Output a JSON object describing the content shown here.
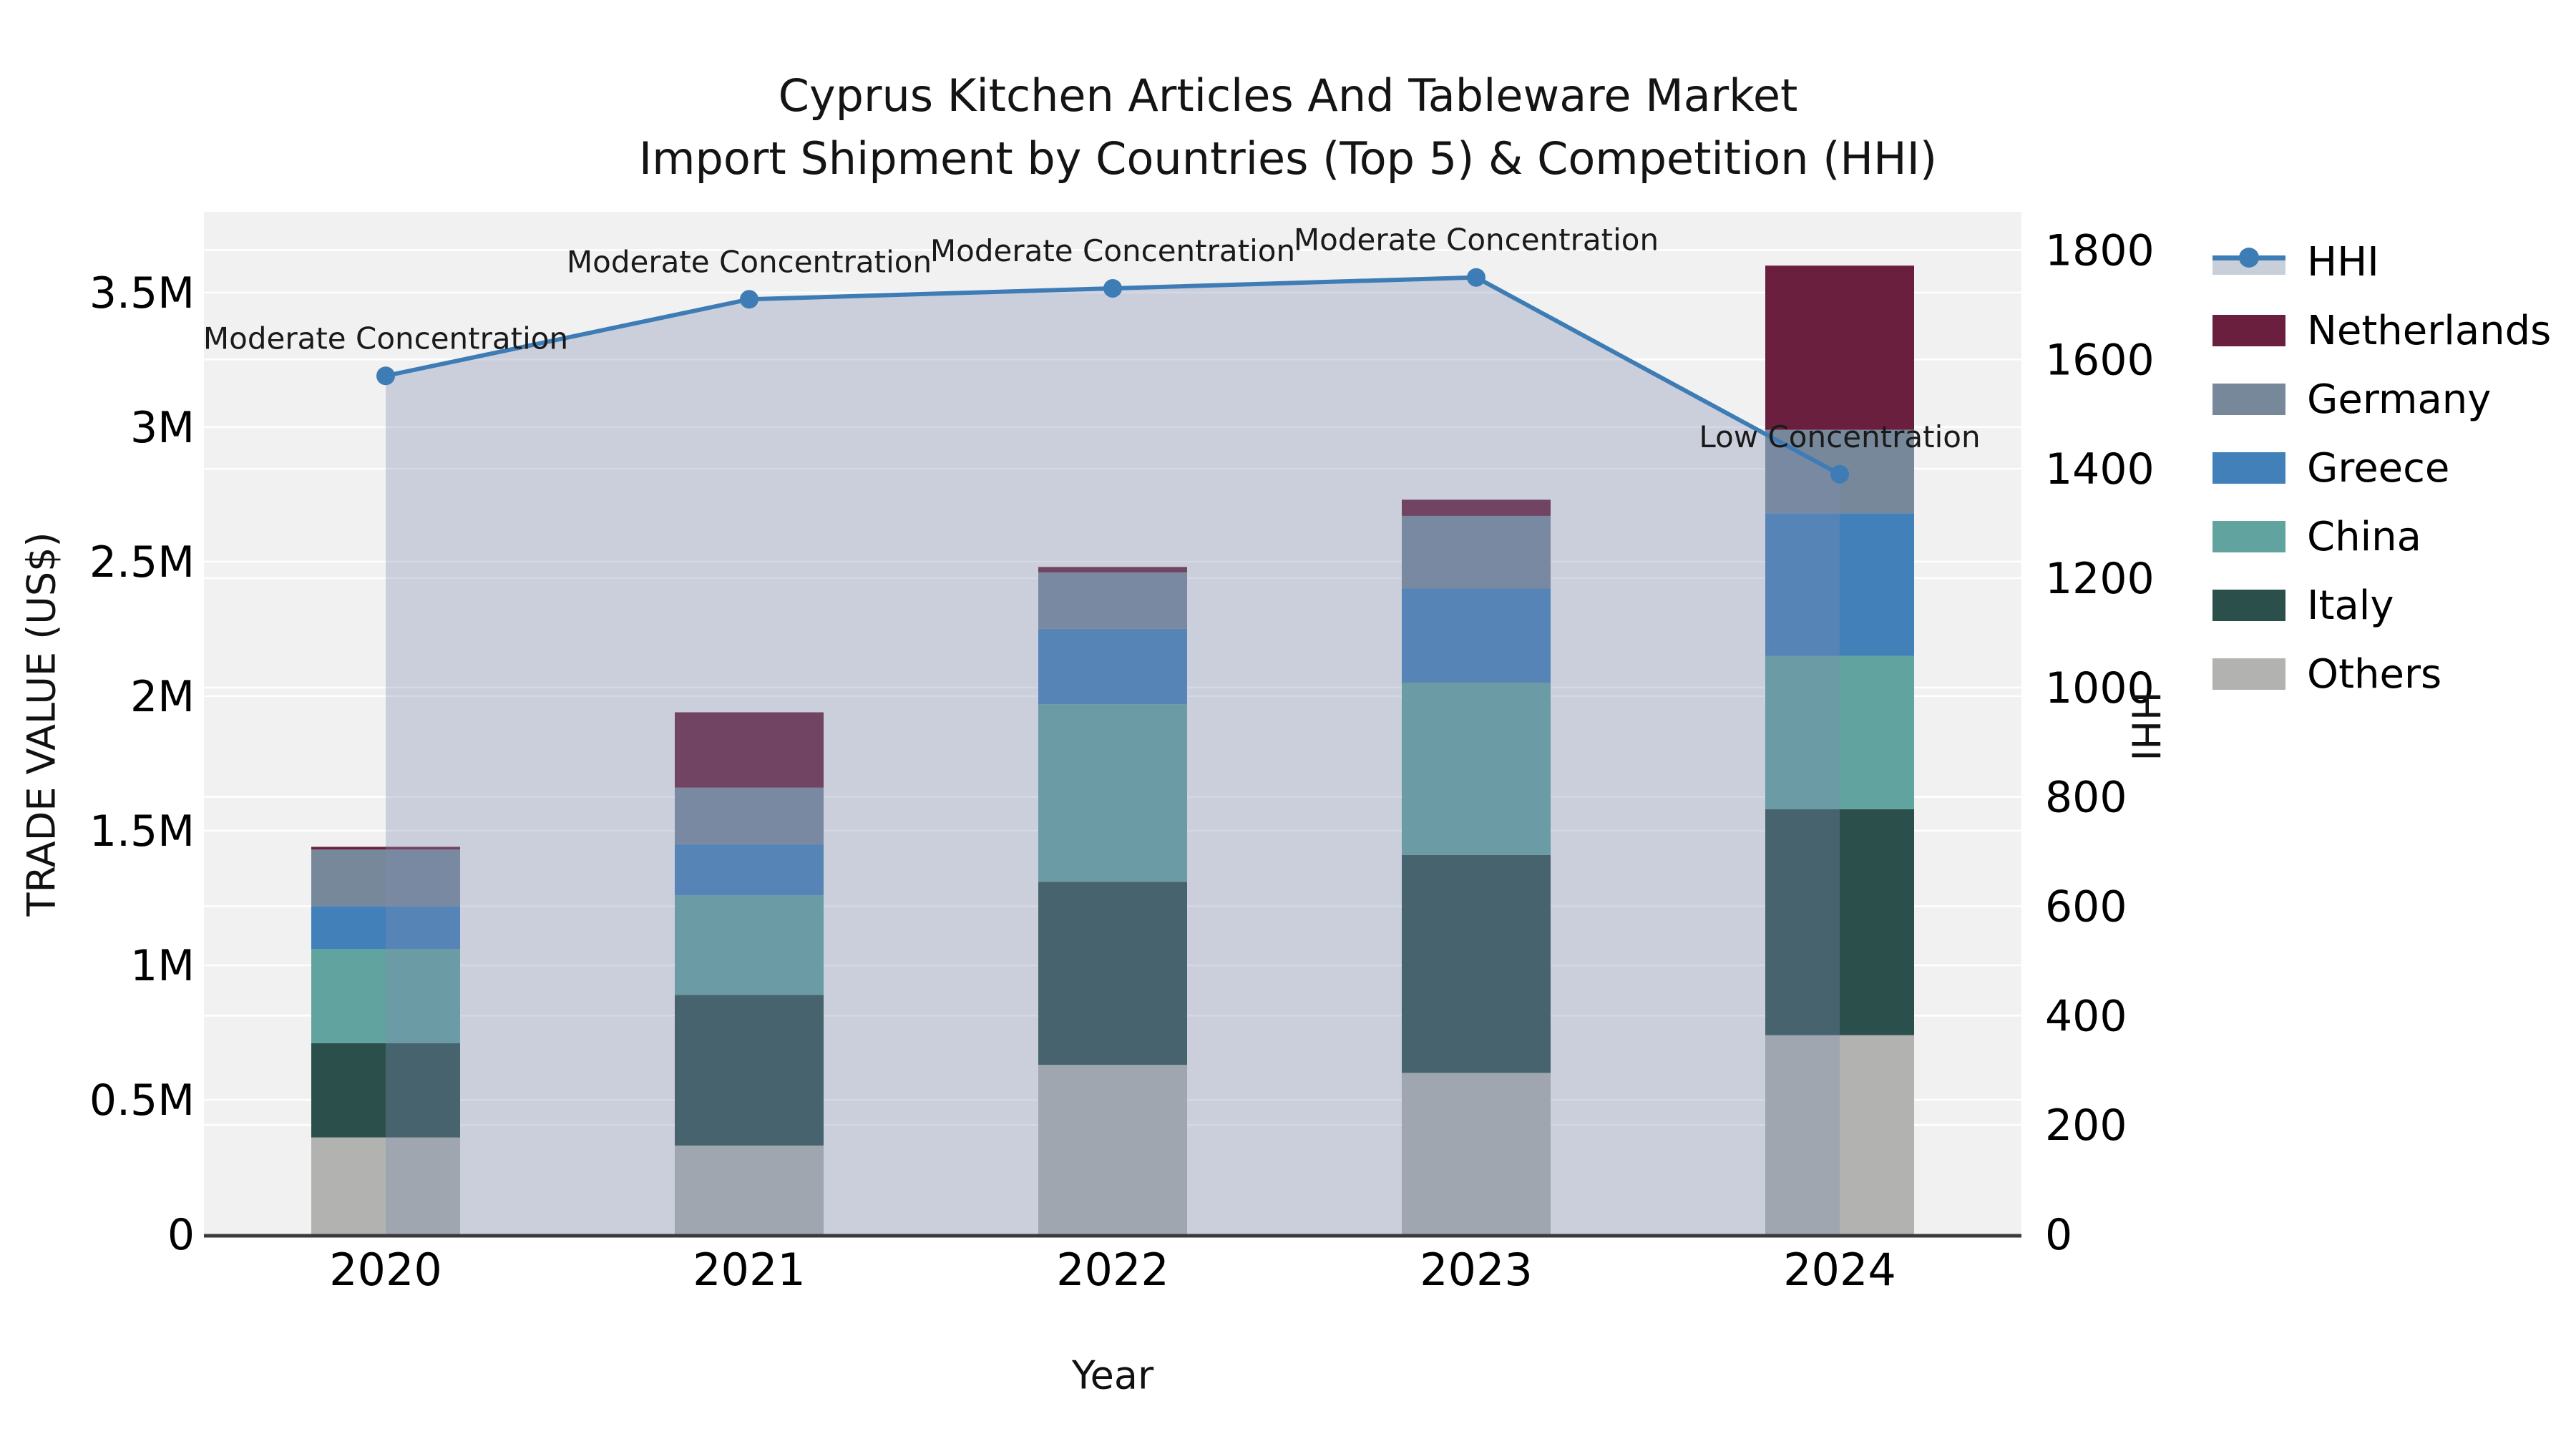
{
  "chart_data": {
    "type": "bar",
    "subtype": "stacked-bar-with-line-overlay",
    "title_line1": "Cyprus Kitchen Articles And Tableware Market",
    "title_line2": "Import Shipment by Countries (Top 5) & Competition (HHI)",
    "xlabel": "Year",
    "ylabel_left": "TRADE VALUE (US$)",
    "ylabel_right": "HHI",
    "categories": [
      "2020",
      "2021",
      "2022",
      "2023",
      "2024"
    ],
    "stacked_series_bottom_to_top": [
      {
        "name": "Others",
        "color": "#b2b3b0",
        "values_musd": [
          0.36,
          0.33,
          0.63,
          0.6,
          0.74
        ]
      },
      {
        "name": "Italy",
        "color": "#2b504c",
        "values_musd": [
          0.35,
          0.56,
          0.68,
          0.81,
          0.84
        ]
      },
      {
        "name": "China",
        "color": "#61a39e",
        "values_musd": [
          0.35,
          0.37,
          0.66,
          0.64,
          0.57
        ]
      },
      {
        "name": "Greece",
        "color": "#4280ba",
        "values_musd": [
          0.16,
          0.19,
          0.28,
          0.35,
          0.53
        ]
      },
      {
        "name": "Germany",
        "color": "#78889b",
        "values_musd": [
          0.21,
          0.21,
          0.21,
          0.27,
          0.31
        ]
      },
      {
        "name": "Netherlands",
        "color": "#6b1f3e",
        "values_musd": [
          0.01,
          0.28,
          0.02,
          0.06,
          0.61
        ]
      }
    ],
    "bar_totals_musd": [
      1.44,
      1.94,
      2.48,
      2.73,
      3.6
    ],
    "hhi_line": {
      "name": "HHI",
      "color": "#3e7cb6",
      "area_fill": "rgba(125,142,175,0.34)",
      "values": [
        1570,
        1710,
        1730,
        1750,
        1390
      ],
      "annotations": [
        "Moderate Concentration",
        "Moderate Concentration",
        "Moderate Concentration",
        "Moderate Concentration",
        "Low Concentration"
      ]
    },
    "left_axis": {
      "max": 3.8,
      "ticks": [
        {
          "label": "0",
          "value": 0
        },
        {
          "label": "0.5M",
          "value": 0.5
        },
        {
          "label": "1M",
          "value": 1
        },
        {
          "label": "1.5M",
          "value": 1.5
        },
        {
          "label": "2M",
          "value": 2
        },
        {
          "label": "2.5M",
          "value": 2.5
        },
        {
          "label": "3M",
          "value": 3
        },
        {
          "label": "3.5M",
          "value": 3.5
        }
      ]
    },
    "right_axis": {
      "max": 1870,
      "ticks": [
        {
          "label": "0",
          "value": 0
        },
        {
          "label": "200",
          "value": 200
        },
        {
          "label": "400",
          "value": 400
        },
        {
          "label": "600",
          "value": 600
        },
        {
          "label": "800",
          "value": 800
        },
        {
          "label": "1000",
          "value": 1000
        },
        {
          "label": "1200",
          "value": 1200
        },
        {
          "label": "1400",
          "value": 1400
        },
        {
          "label": "1600",
          "value": 1600
        },
        {
          "label": "1800",
          "value": 1800
        }
      ]
    },
    "legend": [
      {
        "name": "HHI",
        "type": "line-on-band"
      },
      {
        "name": "Netherlands",
        "type": "patch",
        "color": "#6b1f3e"
      },
      {
        "name": "Germany",
        "type": "patch",
        "color": "#78889b"
      },
      {
        "name": "Greece",
        "type": "patch",
        "color": "#4280ba"
      },
      {
        "name": "China",
        "type": "patch",
        "color": "#61a39e"
      },
      {
        "name": "Italy",
        "type": "patch",
        "color": "#2b504c"
      },
      {
        "name": "Others",
        "type": "patch",
        "color": "#b2b3b0"
      }
    ],
    "colors": {
      "figure_bg": "#ffffff",
      "plot_bg": "#f1f1f1",
      "grid": "#ffffff",
      "spine": "#3a3a3a",
      "text": "#000000",
      "annotation_text": "#1a1a1a"
    },
    "grid": "on",
    "legend_position": "right-outside"
  }
}
